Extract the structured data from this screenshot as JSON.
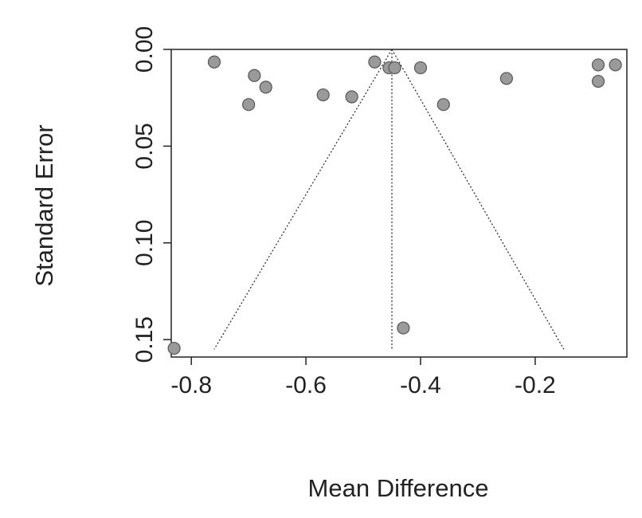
{
  "chart_data": {
    "type": "scatter",
    "title": "",
    "xlabel": "Mean Difference",
    "ylabel": "Standard Error",
    "xlim": [
      -0.835,
      -0.04
    ],
    "ylim": [
      0.0,
      0.159
    ],
    "y_reversed": true,
    "xticks": [
      -0.8,
      -0.6,
      -0.4,
      -0.2
    ],
    "xtick_labels": [
      "-0.8",
      "-0.6",
      "-0.4",
      "-0.2"
    ],
    "yticks": [
      0.0,
      0.05,
      0.1,
      0.15
    ],
    "ytick_labels": [
      "0.00",
      "0.05",
      "0.10",
      "0.15"
    ],
    "grid": false,
    "legend": "none",
    "point_color": "#9a9a9a",
    "point_stroke": "#555555",
    "funnel": {
      "center": -0.45,
      "apex_se": 0.0,
      "base_se": 0.155,
      "left_base_x": -0.76,
      "right_base_x": -0.15,
      "line_style": "dotted"
    },
    "points": [
      {
        "x": -0.76,
        "y": 0.0065
      },
      {
        "x": -0.69,
        "y": 0.0135
      },
      {
        "x": -0.67,
        "y": 0.0195
      },
      {
        "x": -0.7,
        "y": 0.0285
      },
      {
        "x": -0.57,
        "y": 0.0235
      },
      {
        "x": -0.52,
        "y": 0.0245
      },
      {
        "x": -0.48,
        "y": 0.0065
      },
      {
        "x": -0.455,
        "y": 0.0095
      },
      {
        "x": -0.445,
        "y": 0.0095
      },
      {
        "x": -0.4,
        "y": 0.0095
      },
      {
        "x": -0.36,
        "y": 0.0285
      },
      {
        "x": -0.25,
        "y": 0.015
      },
      {
        "x": -0.09,
        "y": 0.008
      },
      {
        "x": -0.06,
        "y": 0.008
      },
      {
        "x": -0.09,
        "y": 0.0165
      },
      {
        "x": -0.43,
        "y": 0.144
      },
      {
        "x": -0.83,
        "y": 0.1545
      }
    ]
  }
}
